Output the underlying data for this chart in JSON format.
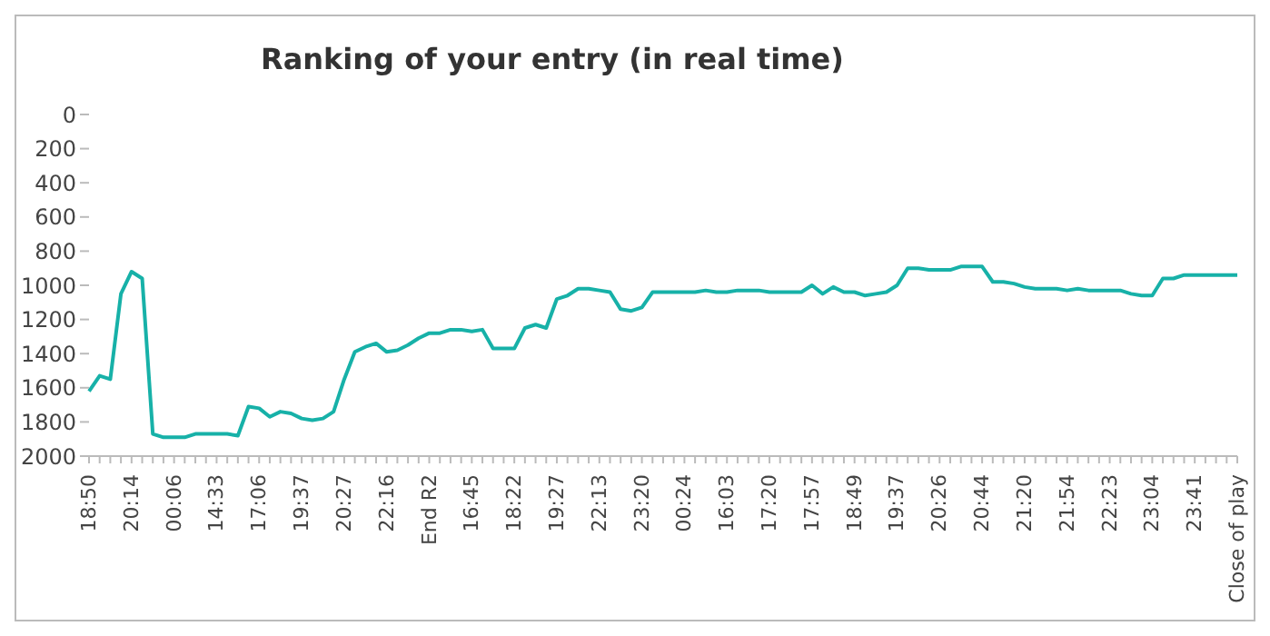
{
  "chart_data": {
    "type": "line",
    "title": "Ranking of your entry (in real time)",
    "categories": [
      "18:50",
      null,
      null,
      null,
      "20:14",
      null,
      null,
      null,
      "00:06",
      null,
      null,
      null,
      "14:33",
      null,
      null,
      null,
      "17:06",
      null,
      null,
      null,
      "19:37",
      null,
      null,
      null,
      "20:27",
      null,
      null,
      null,
      "22:16",
      null,
      null,
      null,
      "End R2",
      null,
      null,
      null,
      "16:45",
      null,
      null,
      null,
      "18:22",
      null,
      null,
      null,
      "19:27",
      null,
      null,
      null,
      "22:13",
      null,
      null,
      null,
      "23:20",
      null,
      null,
      null,
      "00:24",
      null,
      null,
      null,
      "16:03",
      null,
      null,
      null,
      "17:20",
      null,
      null,
      null,
      "17:57",
      null,
      null,
      null,
      "18:49",
      null,
      null,
      null,
      "19:37",
      null,
      null,
      null,
      "20:26",
      null,
      null,
      null,
      "20:44",
      null,
      null,
      null,
      "21:20",
      null,
      null,
      null,
      "21:54",
      null,
      null,
      null,
      "22:23",
      null,
      null,
      null,
      "23:04",
      null,
      null,
      null,
      "23:41",
      null,
      null,
      null,
      "Close of play"
    ],
    "series": [
      {
        "color": "#17b1a8",
        "values": [
          1620,
          1530,
          1550,
          1050,
          920,
          960,
          1870,
          1890,
          1890,
          1890,
          1870,
          1870,
          1870,
          1870,
          1880,
          1710,
          1720,
          1770,
          1740,
          1750,
          1780,
          1790,
          1780,
          1740,
          1550,
          1390,
          1360,
          1340,
          1390,
          1380,
          1350,
          1310,
          1280,
          1280,
          1260,
          1260,
          1270,
          1260,
          1370,
          1370,
          1370,
          1250,
          1230,
          1250,
          1080,
          1060,
          1020,
          1020,
          1030,
          1040,
          1140,
          1150,
          1130,
          1040,
          1040,
          1040,
          1040,
          1040,
          1030,
          1040,
          1040,
          1030,
          1030,
          1030,
          1040,
          1040,
          1040,
          1040,
          1000,
          1050,
          1010,
          1040,
          1040,
          1060,
          1050,
          1040,
          1000,
          900,
          900,
          910,
          910,
          910,
          890,
          890,
          890,
          980,
          980,
          990,
          1010,
          1020,
          1020,
          1020,
          1030,
          1020,
          1030,
          1030,
          1030,
          1030,
          1050,
          1060,
          1060,
          960,
          960,
          940,
          940,
          940,
          940,
          940,
          940
        ]
      }
    ],
    "ylim": [
      2000,
      0
    ],
    "yticks": [
      0,
      200,
      400,
      600,
      800,
      1000,
      1200,
      1400,
      1600,
      1800,
      2000
    ],
    "grid": false,
    "legend": false,
    "marker": "none",
    "line_style": "solid"
  }
}
